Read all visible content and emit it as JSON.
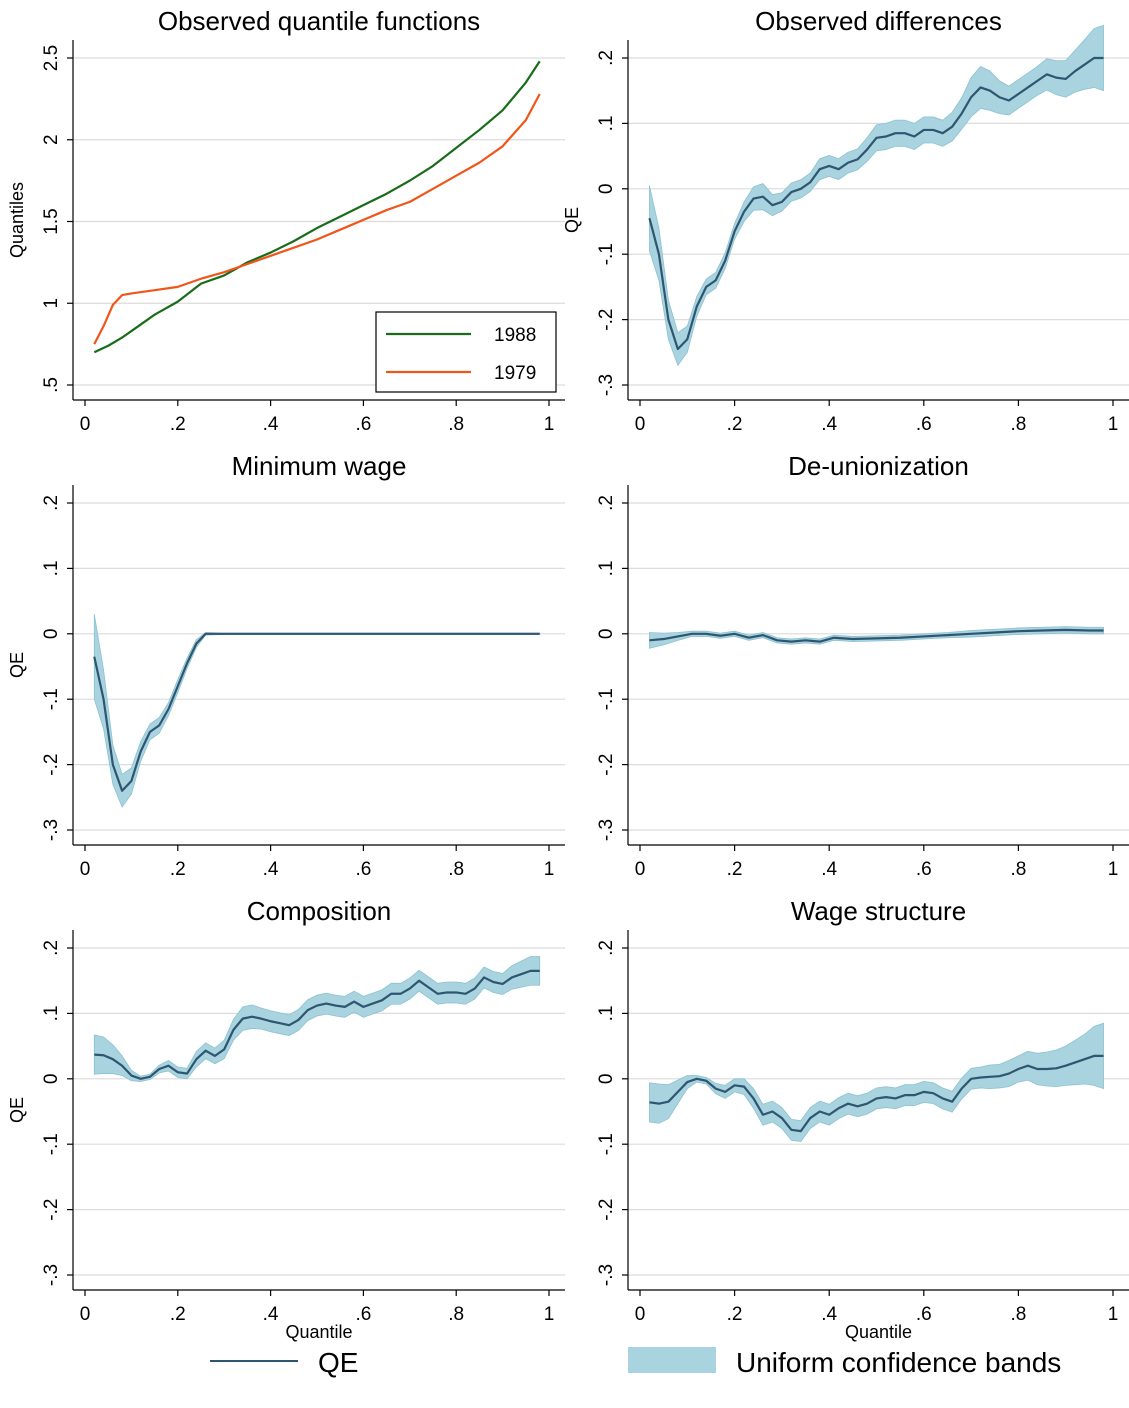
{
  "colors": {
    "qe_line": "#2e5670",
    "band_fill": "#a8d3df",
    "band_edge": "#8cc2d2",
    "series_1988": "#1a6b1a",
    "series_1979": "#f0561a",
    "grid": "#dcdcdc"
  },
  "legend": {
    "qe_label": "QE",
    "band_label": "Uniform confidence bands"
  },
  "chart_data": [
    {
      "id": "observed-quantiles",
      "type": "line",
      "title": "Observed quantile functions",
      "xlabel": "",
      "ylabel": "Quantiles",
      "xlim": [
        0,
        1
      ],
      "ylim": [
        0.5,
        2.5
      ],
      "yticks": [
        0.5,
        1,
        1.5,
        2,
        2.5
      ],
      "ytick_labels": [
        ".5",
        "1",
        "1.5",
        "2",
        "2.5"
      ],
      "xticks": [
        0,
        0.2,
        0.4,
        0.6,
        0.8,
        1
      ],
      "xtick_labels": [
        "0",
        ".2",
        ".4",
        ".6",
        ".8",
        "1"
      ],
      "grid": true,
      "legend_position": "bottom-right",
      "series": [
        {
          "name": "1988",
          "x": [
            0.02,
            0.05,
            0.08,
            0.1,
            0.15,
            0.2,
            0.25,
            0.3,
            0.35,
            0.4,
            0.45,
            0.5,
            0.55,
            0.6,
            0.65,
            0.7,
            0.75,
            0.8,
            0.85,
            0.9,
            0.95,
            0.98
          ],
          "y": [
            0.7,
            0.74,
            0.79,
            0.83,
            0.93,
            1.01,
            1.12,
            1.17,
            1.25,
            1.31,
            1.38,
            1.46,
            1.53,
            1.6,
            1.67,
            1.75,
            1.84,
            1.95,
            2.06,
            2.18,
            2.35,
            2.48
          ]
        },
        {
          "name": "1979",
          "x": [
            0.02,
            0.04,
            0.06,
            0.08,
            0.1,
            0.15,
            0.2,
            0.25,
            0.3,
            0.35,
            0.4,
            0.45,
            0.5,
            0.55,
            0.6,
            0.65,
            0.7,
            0.75,
            0.8,
            0.85,
            0.9,
            0.95,
            0.98
          ],
          "y": [
            0.75,
            0.86,
            0.99,
            1.05,
            1.06,
            1.08,
            1.1,
            1.15,
            1.19,
            1.24,
            1.29,
            1.34,
            1.39,
            1.45,
            1.51,
            1.57,
            1.62,
            1.7,
            1.78,
            1.86,
            1.96,
            2.12,
            2.28
          ]
        }
      ]
    },
    {
      "id": "observed-differences",
      "type": "line",
      "title": "Observed differences",
      "xlabel": "",
      "ylabel": "QE",
      "xlim": [
        0,
        1
      ],
      "ylim": [
        -0.3,
        0.2
      ],
      "yticks": [
        -0.3,
        -0.2,
        -0.1,
        0,
        0.1,
        0.2
      ],
      "ytick_labels": [
        "-.3",
        "-.2",
        "-.1",
        "0",
        ".1",
        ".2"
      ],
      "xticks": [
        0,
        0.2,
        0.4,
        0.6,
        0.8,
        1
      ],
      "xtick_labels": [
        "0",
        ".2",
        ".4",
        ".6",
        ".8",
        "1"
      ],
      "grid": true,
      "series": [
        {
          "name": "QE",
          "x": [
            0.02,
            0.04,
            0.06,
            0.08,
            0.1,
            0.12,
            0.14,
            0.16,
            0.18,
            0.2,
            0.22,
            0.24,
            0.26,
            0.28,
            0.3,
            0.32,
            0.34,
            0.36,
            0.38,
            0.4,
            0.42,
            0.44,
            0.46,
            0.48,
            0.5,
            0.52,
            0.54,
            0.56,
            0.58,
            0.6,
            0.62,
            0.64,
            0.66,
            0.68,
            0.7,
            0.72,
            0.74,
            0.76,
            0.78,
            0.8,
            0.82,
            0.84,
            0.86,
            0.88,
            0.9,
            0.92,
            0.94,
            0.96,
            0.98
          ],
          "y": [
            -0.045,
            -0.1,
            -0.2,
            -0.245,
            -0.23,
            -0.18,
            -0.15,
            -0.14,
            -0.11,
            -0.065,
            -0.035,
            -0.015,
            -0.012,
            -0.025,
            -0.02,
            -0.005,
            0.0,
            0.01,
            0.03,
            0.035,
            0.03,
            0.04,
            0.045,
            0.06,
            0.078,
            0.08,
            0.085,
            0.085,
            0.08,
            0.09,
            0.09,
            0.085,
            0.095,
            0.115,
            0.14,
            0.155,
            0.15,
            0.14,
            0.135,
            0.145,
            0.155,
            0.165,
            0.175,
            0.17,
            0.168,
            0.18,
            0.19,
            0.2,
            0.2
          ],
          "band_half_width": [
            0.05,
            0.04,
            0.03,
            0.025,
            0.02,
            0.015,
            0.012,
            0.012,
            0.012,
            0.012,
            0.015,
            0.018,
            0.02,
            0.016,
            0.014,
            0.014,
            0.014,
            0.014,
            0.016,
            0.016,
            0.016,
            0.016,
            0.016,
            0.018,
            0.02,
            0.02,
            0.02,
            0.02,
            0.02,
            0.02,
            0.02,
            0.02,
            0.022,
            0.024,
            0.03,
            0.032,
            0.03,
            0.025,
            0.022,
            0.022,
            0.022,
            0.022,
            0.024,
            0.026,
            0.028,
            0.032,
            0.038,
            0.045,
            0.05
          ]
        }
      ]
    },
    {
      "id": "minimum-wage",
      "type": "line",
      "title": "Minimum wage",
      "xlabel": "",
      "ylabel": "QE",
      "xlim": [
        0,
        1
      ],
      "ylim": [
        -0.3,
        0.2
      ],
      "yticks": [
        -0.3,
        -0.2,
        -0.1,
        0,
        0.1,
        0.2
      ],
      "ytick_labels": [
        "-.3",
        "-.2",
        "-.1",
        "0",
        ".1",
        ".2"
      ],
      "xticks": [
        0,
        0.2,
        0.4,
        0.6,
        0.8,
        1
      ],
      "xtick_labels": [
        "0",
        ".2",
        ".4",
        ".6",
        ".8",
        "1"
      ],
      "grid": true,
      "series": [
        {
          "name": "QE",
          "x": [
            0.02,
            0.04,
            0.06,
            0.08,
            0.1,
            0.12,
            0.14,
            0.16,
            0.18,
            0.2,
            0.22,
            0.24,
            0.26,
            0.3,
            0.4,
            0.5,
            0.6,
            0.7,
            0.8,
            0.9,
            0.98
          ],
          "y": [
            -0.035,
            -0.1,
            -0.2,
            -0.24,
            -0.225,
            -0.18,
            -0.15,
            -0.14,
            -0.115,
            -0.08,
            -0.045,
            -0.015,
            0.0,
            0.0,
            0.0,
            0.0,
            0.0,
            0.0,
            0.0,
            0.0,
            0.0
          ],
          "band_half_width": [
            0.065,
            0.045,
            0.03,
            0.025,
            0.02,
            0.015,
            0.012,
            0.012,
            0.01,
            0.01,
            0.008,
            0.006,
            0.002,
            0.001,
            0.001,
            0.001,
            0.001,
            0.001,
            0.001,
            0.001,
            0.001
          ]
        }
      ]
    },
    {
      "id": "de-unionization",
      "type": "line",
      "title": "De-unionization",
      "xlabel": "",
      "ylabel": "",
      "xlim": [
        0,
        1
      ],
      "ylim": [
        -0.3,
        0.2
      ],
      "yticks": [
        -0.3,
        -0.2,
        -0.1,
        0,
        0.1,
        0.2
      ],
      "ytick_labels": [
        "-.3",
        "-.2",
        "-.1",
        "0",
        ".1",
        ".2"
      ],
      "xticks": [
        0,
        0.2,
        0.4,
        0.6,
        0.8,
        1
      ],
      "xtick_labels": [
        "0",
        ".2",
        ".4",
        ".6",
        ".8",
        "1"
      ],
      "grid": true,
      "series": [
        {
          "name": "QE",
          "x": [
            0.02,
            0.05,
            0.08,
            0.11,
            0.14,
            0.17,
            0.2,
            0.23,
            0.26,
            0.29,
            0.32,
            0.35,
            0.38,
            0.41,
            0.45,
            0.5,
            0.55,
            0.6,
            0.65,
            0.7,
            0.75,
            0.8,
            0.85,
            0.9,
            0.95,
            0.98
          ],
          "y": [
            -0.01,
            -0.008,
            -0.004,
            0.0,
            0.0,
            -0.003,
            0.0,
            -0.006,
            -0.002,
            -0.01,
            -0.012,
            -0.01,
            -0.012,
            -0.006,
            -0.008,
            -0.007,
            -0.006,
            -0.004,
            -0.002,
            0.0,
            0.002,
            0.004,
            0.005,
            0.006,
            0.005,
            0.005
          ]
        }
      ],
      "band_half_width": [
        0.012,
        0.009,
        0.006,
        0.004,
        0.004,
        0.004,
        0.004,
        0.004,
        0.004,
        0.004,
        0.004,
        0.004,
        0.004,
        0.004,
        0.004,
        0.004,
        0.004,
        0.004,
        0.004,
        0.005,
        0.005,
        0.005,
        0.005,
        0.005,
        0.005,
        0.005
      ]
    },
    {
      "id": "composition",
      "type": "line",
      "title": "Composition",
      "xlabel": "Quantile",
      "ylabel": "QE",
      "xlim": [
        0,
        1
      ],
      "ylim": [
        -0.3,
        0.2
      ],
      "yticks": [
        -0.3,
        -0.2,
        -0.1,
        0,
        0.1,
        0.2
      ],
      "ytick_labels": [
        "-.3",
        "-.2",
        "-.1",
        "0",
        ".1",
        ".2"
      ],
      "xticks": [
        0,
        0.2,
        0.4,
        0.6,
        0.8,
        1
      ],
      "xtick_labels": [
        "0",
        ".2",
        ".4",
        ".6",
        ".8",
        "1"
      ],
      "grid": true,
      "series": [
        {
          "name": "QE",
          "x": [
            0.02,
            0.04,
            0.06,
            0.08,
            0.1,
            0.12,
            0.14,
            0.16,
            0.18,
            0.2,
            0.22,
            0.24,
            0.26,
            0.28,
            0.3,
            0.32,
            0.34,
            0.36,
            0.38,
            0.4,
            0.42,
            0.44,
            0.46,
            0.48,
            0.5,
            0.52,
            0.54,
            0.56,
            0.58,
            0.6,
            0.62,
            0.64,
            0.66,
            0.68,
            0.7,
            0.72,
            0.74,
            0.76,
            0.78,
            0.8,
            0.82,
            0.84,
            0.86,
            0.88,
            0.9,
            0.92,
            0.94,
            0.96,
            0.98
          ],
          "y": [
            0.037,
            0.036,
            0.03,
            0.02,
            0.005,
            0.0,
            0.003,
            0.015,
            0.02,
            0.01,
            0.008,
            0.03,
            0.043,
            0.035,
            0.045,
            0.075,
            0.092,
            0.095,
            0.092,
            0.088,
            0.085,
            0.082,
            0.09,
            0.105,
            0.112,
            0.115,
            0.112,
            0.11,
            0.118,
            0.11,
            0.115,
            0.12,
            0.13,
            0.13,
            0.138,
            0.15,
            0.14,
            0.13,
            0.132,
            0.132,
            0.13,
            0.138,
            0.155,
            0.148,
            0.145,
            0.155,
            0.16,
            0.165,
            0.165
          ],
          "band_half_width": [
            0.03,
            0.028,
            0.022,
            0.015,
            0.008,
            0.004,
            0.004,
            0.006,
            0.008,
            0.008,
            0.008,
            0.012,
            0.012,
            0.012,
            0.014,
            0.016,
            0.018,
            0.018,
            0.016,
            0.016,
            0.016,
            0.016,
            0.016,
            0.016,
            0.016,
            0.016,
            0.016,
            0.016,
            0.016,
            0.016,
            0.016,
            0.016,
            0.016,
            0.016,
            0.016,
            0.016,
            0.016,
            0.016,
            0.016,
            0.016,
            0.016,
            0.016,
            0.016,
            0.016,
            0.016,
            0.018,
            0.02,
            0.022,
            0.022
          ]
        }
      ]
    },
    {
      "id": "wage-structure",
      "type": "line",
      "title": "Wage structure",
      "xlabel": "Quantile",
      "ylabel": "",
      "xlim": [
        0,
        1
      ],
      "ylim": [
        -0.3,
        0.2
      ],
      "yticks": [
        -0.3,
        -0.2,
        -0.1,
        0,
        0.1,
        0.2
      ],
      "ytick_labels": [
        "-.3",
        "-.2",
        "-.1",
        "0",
        ".1",
        ".2"
      ],
      "xticks": [
        0,
        0.2,
        0.4,
        0.6,
        0.8,
        1
      ],
      "xtick_labels": [
        "0",
        ".2",
        ".4",
        ".6",
        ".8",
        "1"
      ],
      "grid": true,
      "series": [
        {
          "name": "QE",
          "x": [
            0.02,
            0.04,
            0.06,
            0.08,
            0.1,
            0.12,
            0.14,
            0.16,
            0.18,
            0.2,
            0.22,
            0.24,
            0.26,
            0.28,
            0.3,
            0.32,
            0.34,
            0.36,
            0.38,
            0.4,
            0.42,
            0.44,
            0.46,
            0.48,
            0.5,
            0.52,
            0.54,
            0.56,
            0.58,
            0.6,
            0.62,
            0.64,
            0.66,
            0.68,
            0.7,
            0.72,
            0.74,
            0.76,
            0.78,
            0.8,
            0.82,
            0.84,
            0.86,
            0.88,
            0.9,
            0.92,
            0.94,
            0.96,
            0.98
          ],
          "y": [
            -0.036,
            -0.038,
            -0.035,
            -0.02,
            -0.005,
            0.0,
            -0.003,
            -0.015,
            -0.02,
            -0.01,
            -0.012,
            -0.03,
            -0.055,
            -0.05,
            -0.06,
            -0.078,
            -0.08,
            -0.06,
            -0.05,
            -0.055,
            -0.045,
            -0.038,
            -0.042,
            -0.038,
            -0.03,
            -0.028,
            -0.03,
            -0.025,
            -0.025,
            -0.02,
            -0.022,
            -0.03,
            -0.035,
            -0.015,
            0.0,
            0.002,
            0.003,
            0.004,
            0.008,
            0.015,
            0.02,
            0.015,
            0.015,
            0.016,
            0.02,
            0.025,
            0.03,
            0.035,
            0.035
          ],
          "band_half_width": [
            0.03,
            0.03,
            0.026,
            0.018,
            0.01,
            0.005,
            0.005,
            0.008,
            0.01,
            0.01,
            0.012,
            0.015,
            0.016,
            0.016,
            0.016,
            0.016,
            0.016,
            0.016,
            0.016,
            0.016,
            0.016,
            0.016,
            0.016,
            0.016,
            0.016,
            0.016,
            0.016,
            0.016,
            0.016,
            0.016,
            0.016,
            0.016,
            0.016,
            0.016,
            0.016,
            0.016,
            0.018,
            0.018,
            0.02,
            0.02,
            0.022,
            0.024,
            0.026,
            0.028,
            0.03,
            0.034,
            0.038,
            0.045,
            0.05
          ]
        }
      ]
    }
  ]
}
